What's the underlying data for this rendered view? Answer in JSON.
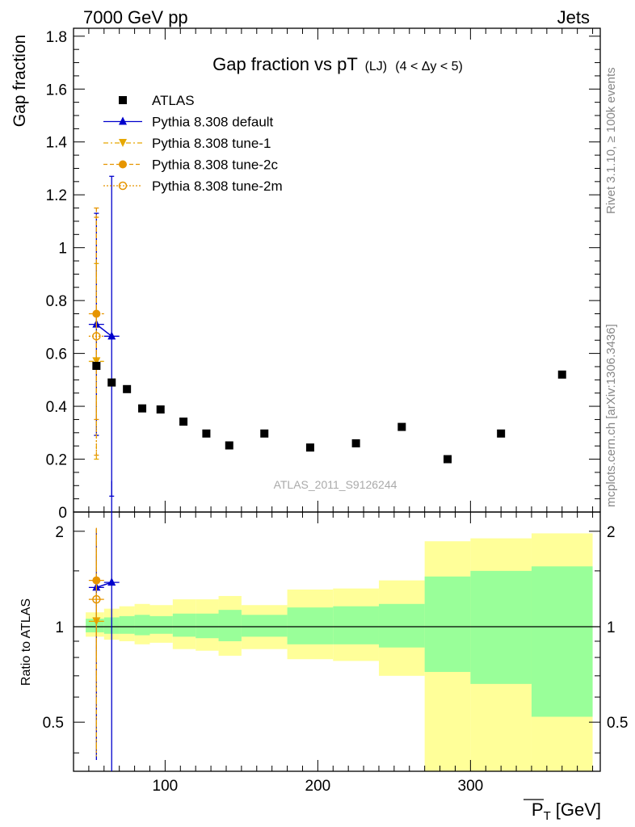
{
  "header": {
    "left": "7000 GeV pp",
    "right": "Jets",
    "side_top": "Rivet 3.1.10, ≥ 100k events",
    "side_bottom": "mcplots.cern.ch [arXiv:1306.3436]",
    "watermark": "ATLAS_2011_S9126244"
  },
  "title": {
    "main": "Gap fraction vs pT",
    "sub1": "(LJ)",
    "sub2": "(4 < Δy < 5)"
  },
  "axes": {
    "ylabel": "Gap fraction",
    "ratio_ylabel": "Ratio to ATLAS",
    "xlabel_p": "P",
    "xlabel_t": "T",
    "xlabel_unit": "[GeV]"
  },
  "colors": {
    "atlas": "#000000",
    "default": "#0000cc",
    "tune1": "#e6a800",
    "tune2c": "#e69500",
    "tune2m": "#e69500",
    "band_inner": "#99ff99",
    "band_outer": "#ffff99"
  },
  "chart_data": [
    {
      "type": "scatter",
      "panel": "main",
      "xlim": [
        40,
        385
      ],
      "ylim": [
        0,
        1.83
      ],
      "xticks": [
        100,
        200,
        300
      ],
      "yticks": [
        0,
        0.2,
        0.4,
        0.6,
        0.8,
        1,
        1.2,
        1.4,
        1.6,
        1.8
      ],
      "ytick_labels": [
        "0",
        "0.2",
        "0.4",
        "0.6",
        "0.8",
        "1",
        "1.2",
        "1.4",
        "1.6",
        "1.8"
      ],
      "legend_position": "top-left",
      "series": [
        {
          "name": "ATLAS",
          "marker": "square",
          "x": [
            55,
            65,
            75,
            85,
            97,
            112,
            127,
            142,
            165,
            195,
            225,
            255,
            285,
            320,
            360
          ],
          "y": [
            0.553,
            0.49,
            0.465,
            0.392,
            0.388,
            0.342,
            0.297,
            0.252,
            0.297,
            0.244,
            0.26,
            0.322,
            0.2,
            0.297,
            0.52
          ]
        },
        {
          "name": "Pythia 8.308 default",
          "marker": "triangle-up",
          "x": [
            55,
            65
          ],
          "y": [
            0.71,
            0.665
          ],
          "yerr_low": [
            0.42,
            0.605
          ],
          "yerr_high": [
            0.42,
            0.605
          ],
          "xerr": 5
        },
        {
          "name": "Pythia 8.308 tune-1",
          "marker": "triangle-down",
          "x": [
            55
          ],
          "y": [
            0.57
          ],
          "yerr_low": [
            0.37
          ],
          "yerr_high": [
            0.37
          ],
          "xerr": 5
        },
        {
          "name": "Pythia 8.308 tune-2c",
          "marker": "circle",
          "x": [
            55
          ],
          "y": [
            0.75
          ],
          "yerr_low": [
            0.4
          ],
          "yerr_high": [
            0.4
          ],
          "xerr": 5
        },
        {
          "name": "Pythia 8.308 tune-2m",
          "marker": "circle-open",
          "x": [
            55
          ],
          "y": [
            0.665
          ],
          "yerr_low": [
            0.45
          ],
          "yerr_high": [
            0.45
          ],
          "xerr": 5
        }
      ]
    },
    {
      "type": "scatter",
      "panel": "ratio",
      "xlim": [
        40,
        385
      ],
      "ylim": [
        0.35,
        2.3
      ],
      "yscale": "log",
      "xticks": [
        100,
        200,
        300
      ],
      "xtick_labels": [
        "100",
        "200",
        "300"
      ],
      "yticks": [
        0.5,
        1,
        2
      ],
      "ytick_labels": [
        "0.5",
        "1",
        "2"
      ],
      "band_edges": [
        48,
        60,
        70,
        80,
        90,
        105,
        120,
        135,
        150,
        180,
        210,
        240,
        270,
        300,
        340,
        380
      ],
      "band_inner": [
        [
          0.96,
          1.06
        ],
        [
          0.95,
          1.07
        ],
        [
          0.95,
          1.08
        ],
        [
          0.94,
          1.09
        ],
        [
          0.95,
          1.08
        ],
        [
          0.93,
          1.1
        ],
        [
          0.92,
          1.1
        ],
        [
          0.9,
          1.13
        ],
        [
          0.93,
          1.09
        ],
        [
          0.88,
          1.15
        ],
        [
          0.88,
          1.16
        ],
        [
          0.86,
          1.18
        ],
        [
          0.72,
          1.44
        ],
        [
          0.66,
          1.5
        ],
        [
          0.52,
          1.55
        ]
      ],
      "band_outer": [
        [
          0.93,
          1.11
        ],
        [
          0.91,
          1.14
        ],
        [
          0.9,
          1.16
        ],
        [
          0.88,
          1.18
        ],
        [
          0.89,
          1.17
        ],
        [
          0.85,
          1.22
        ],
        [
          0.84,
          1.22
        ],
        [
          0.81,
          1.25
        ],
        [
          0.85,
          1.17
        ],
        [
          0.79,
          1.31
        ],
        [
          0.78,
          1.32
        ],
        [
          0.7,
          1.4
        ],
        [
          0.3,
          1.86
        ],
        [
          0.3,
          1.9
        ],
        [
          0.3,
          1.97
        ]
      ],
      "series": [
        {
          "name": "Pythia 8.308 default",
          "x": [
            55,
            65
          ],
          "y": [
            1.33,
            1.38
          ],
          "yerr_low": [
            0.95,
            1.2
          ],
          "yerr_high": [
            0.7,
            1.5
          ]
        },
        {
          "name": "Pythia 8.308 tune-1",
          "x": [
            55
          ],
          "y": [
            1.04
          ],
          "yerr_low": [
            0.65
          ],
          "yerr_high": [
            1.0
          ]
        },
        {
          "name": "Pythia 8.308 tune-2c",
          "x": [
            55
          ],
          "y": [
            1.4
          ],
          "yerr_low": [
            0.75
          ],
          "yerr_high": [
            0.65
          ]
        },
        {
          "name": "Pythia 8.308 tune-2m",
          "x": [
            55
          ],
          "y": [
            1.22
          ],
          "yerr_low": [
            0.82
          ],
          "yerr_high": [
            0.82
          ]
        }
      ]
    }
  ]
}
